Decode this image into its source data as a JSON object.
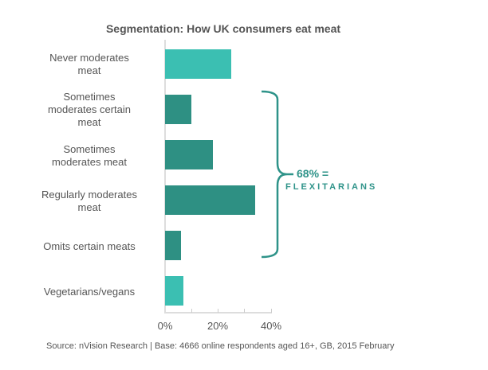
{
  "chart_data": {
    "type": "bar",
    "orientation": "horizontal",
    "title": "Segmentation: How UK consumers eat meat",
    "categories": [
      "Never moderates meat",
      "Sometimes moderates certain meat",
      "Sometimes moderates meat",
      "Regularly moderates meat",
      "Omits certain meats",
      "Vegetarians/vegans"
    ],
    "values": [
      25,
      10,
      18,
      34,
      6,
      7
    ],
    "colors": [
      "#3bbfb2",
      "#2e9083",
      "#2e9083",
      "#2e9083",
      "#2e9083",
      "#3bbfb2"
    ],
    "xlabel": "",
    "ylabel": "",
    "xlim": [
      0,
      40
    ],
    "xticks": [
      "0%",
      "20%",
      "40%"
    ],
    "grid": false,
    "annotation": {
      "line1": "68% =",
      "line2": "FLEXITARIANS",
      "brackets": [
        "Sometimes moderates certain meat",
        "Sometimes moderates meat",
        "Regularly moderates meat",
        "Omits certain meats"
      ]
    },
    "source": "Source: nVision Research | Base: 4666 online respondents aged 16+, GB, 2015 February"
  },
  "labels": {
    "l0": [
      "Never moderates",
      "meat"
    ],
    "l1": [
      "Sometimes",
      "moderates certain",
      "meat"
    ],
    "l2": [
      "Sometimes",
      "moderates meat"
    ],
    "l3": [
      "Regularly moderates",
      "meat"
    ],
    "l4": [
      "Omits certain meats"
    ],
    "l5": [
      "Vegetarians/vegans"
    ]
  }
}
